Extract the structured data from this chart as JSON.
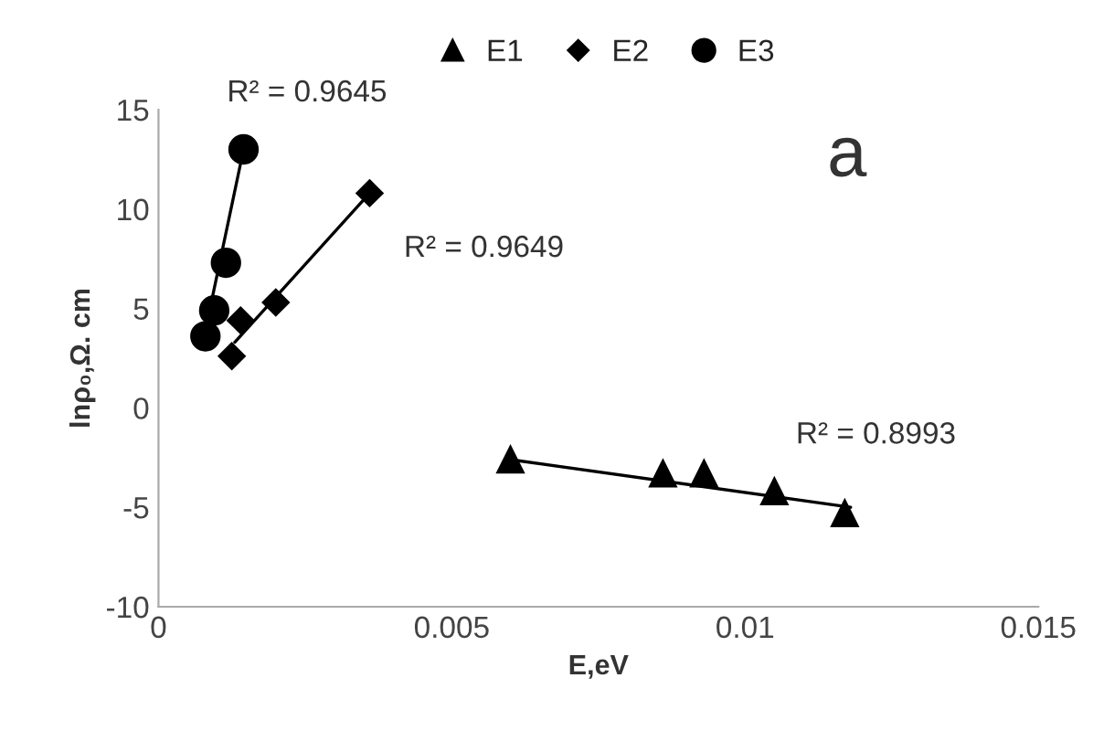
{
  "chart_data": {
    "type": "scatter",
    "xlabel": "E,eV",
    "ylabel": "lnρ₀,Ω. cm",
    "xlim": [
      0,
      0.015
    ],
    "xticks": [
      0,
      0.005,
      0.01,
      0.015
    ],
    "ylim": [
      -10,
      15
    ],
    "yticks": [
      -10,
      -5,
      0,
      5,
      10,
      15
    ],
    "grid": false,
    "legend": "top",
    "series": [
      {
        "name": "E1",
        "marker": "triangle",
        "color": "#000000",
        "x": [
          0.006,
          0.0086,
          0.0093,
          0.0105,
          0.0117
        ],
        "values": [
          -2.6,
          -3.3,
          -3.3,
          -4.2,
          -5.3
        ]
      },
      {
        "name": "E2",
        "marker": "diamond",
        "color": "#000000",
        "x": [
          0.00125,
          0.0014,
          0.002,
          0.0036
        ],
        "values": [
          2.6,
          4.4,
          5.3,
          10.8
        ]
      },
      {
        "name": "E3",
        "marker": "circle",
        "color": "#000000",
        "x": [
          0.0008,
          0.00095,
          0.00115,
          0.00145
        ],
        "values": [
          3.6,
          4.9,
          7.3,
          13.0
        ]
      },
      {
        "type": "line",
        "marker": "none",
        "color": "#000000",
        "x": [
          0.006,
          0.0118
        ],
        "values": [
          -2.6,
          -5.0
        ]
      },
      {
        "type": "line",
        "marker": "none",
        "color": "#000000",
        "x": [
          0.0013,
          0.0036
        ],
        "values": [
          3.3,
          10.8
        ]
      },
      {
        "type": "line",
        "marker": "none",
        "color": "#000000",
        "x": [
          0.0008,
          0.00145
        ],
        "values": [
          3.9,
          13.0
        ]
      }
    ],
    "annotations": [
      {
        "text": "R² = 0.9645",
        "x": 0.00145,
        "y": 13.0
      },
      {
        "text": "R² = 0.9649",
        "x": 0.0036,
        "y": 10.8
      },
      {
        "text": "R² = 0.8993",
        "x": 0.0105,
        "y": -4.2
      },
      "a"
    ]
  }
}
